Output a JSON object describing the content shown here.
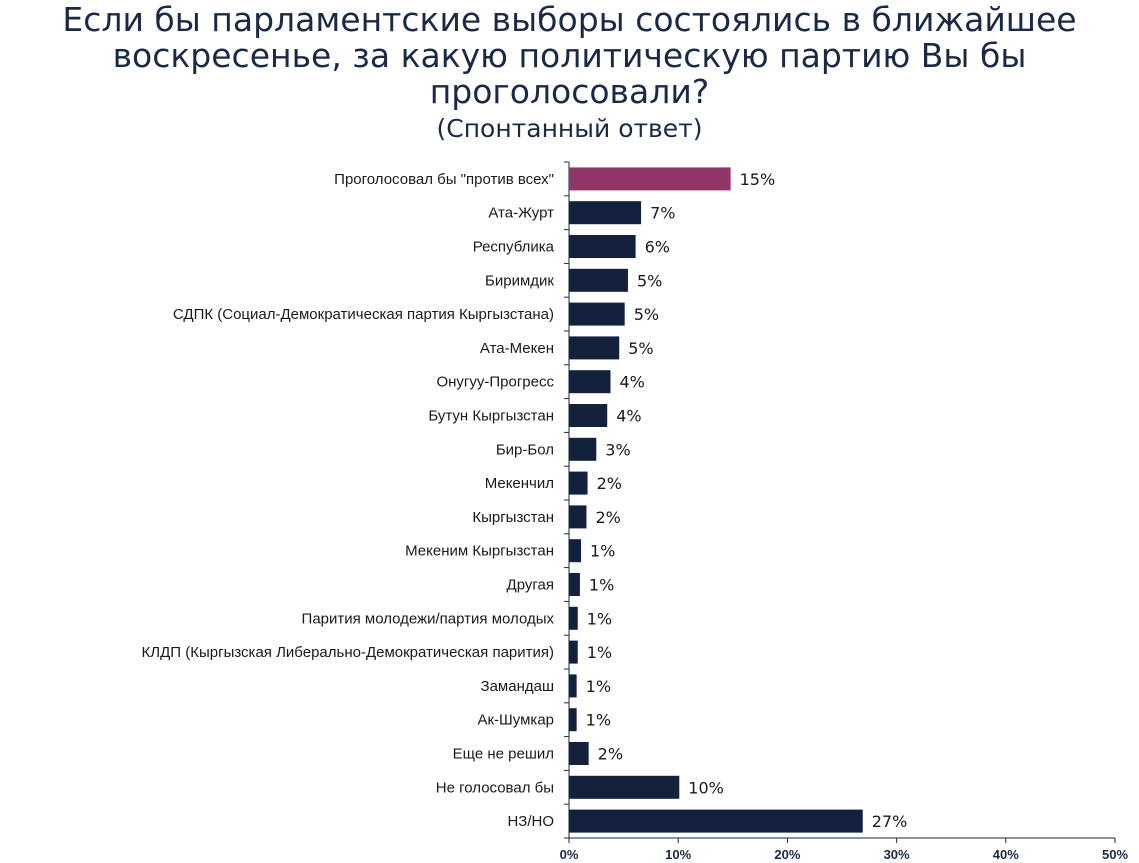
{
  "chart_data": {
    "type": "bar",
    "orientation": "horizontal",
    "title": "Если бы парламентские выборы состоялись в ближайшее воскресенье, за какую политическую партию Вы бы проголосовали?",
    "subtitle": "(Спонтанный ответ)",
    "xlim": [
      0,
      50
    ],
    "ticks": [
      0,
      10,
      20,
      30,
      40,
      50
    ],
    "tick_labels": [
      "0%",
      "10%",
      "20%",
      "30%",
      "40%",
      "50%"
    ],
    "grid": false,
    "categories": [
      "Проголосовал бы \"против всех\"",
      "Ата-Журт",
      "Республика",
      "Биримдик",
      "СДПК (Социал-Демократическая партия Кыргызстана)",
      "Ата-Мекен",
      "Онугуу-Прогресс",
      "Бутун Кыргызстан",
      "Бир-Бол",
      "Мекенчил",
      "Кыргызстан",
      "Мекеним Кыргызстан",
      "Другая",
      "Парития молодежи/партия молодых",
      "КЛДП (Кыргызская Либерально-Демократическая парития)",
      "Замандаш",
      "Ак-Шумкар",
      "Еще не решил",
      "Не голосовал бы",
      "НЗ/НО"
    ],
    "values": [
      14.8,
      6.6,
      6.1,
      5.4,
      5.1,
      4.6,
      3.8,
      3.5,
      2.5,
      1.7,
      1.6,
      1.1,
      1.0,
      0.8,
      0.8,
      0.7,
      0.7,
      1.8,
      10.1,
      26.9
    ],
    "value_labels": [
      "15%",
      "7%",
      "6%",
      "5%",
      "5%",
      "5%",
      "4%",
      "4%",
      "3%",
      "2%",
      "2%",
      "1%",
      "1%",
      "1%",
      "1%",
      "1%",
      "1%",
      "2%",
      "10%",
      "27%"
    ],
    "colors": {
      "default": "#13213d",
      "highlight": "#913567",
      "axis": "#1a2a44"
    },
    "highlight_index": 0
  }
}
